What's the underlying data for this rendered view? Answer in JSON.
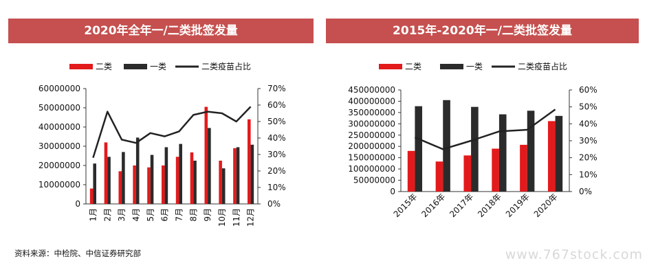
{
  "colors": {
    "title_bg": "#c5504f",
    "red": "#e31a1c",
    "black": "#2b2b2b",
    "line": "#222222"
  },
  "source_note": "资料来源：中检院、中信证券研究部",
  "watermark": "www.767stock.com",
  "chart_data": [
    {
      "type": "bar",
      "title": "2020年全年一/二类批签发量",
      "categories": [
        "1月",
        "2月",
        "3月",
        "4月",
        "5月",
        "6月",
        "7月",
        "8月",
        "9月",
        "10月",
        "11月",
        "12月"
      ],
      "series": [
        {
          "name": "二类",
          "kind": "bar",
          "axis": "left",
          "values": [
            8000000,
            32000000,
            17000000,
            20000000,
            19000000,
            20000000,
            24500000,
            26800000,
            50500000,
            22500000,
            29000000,
            44000000
          ]
        },
        {
          "name": "一类",
          "kind": "bar",
          "axis": "left",
          "values": [
            21000000,
            24500000,
            27000000,
            34500000,
            25500000,
            29500000,
            31200000,
            22500000,
            39500000,
            18500000,
            29500000,
            30800000
          ]
        },
        {
          "name": "二类疫苗占比",
          "kind": "line",
          "axis": "right",
          "values": [
            0.28,
            0.56,
            0.39,
            0.37,
            0.43,
            0.41,
            0.44,
            0.54,
            0.56,
            0.55,
            0.5,
            0.59
          ]
        }
      ],
      "ylim": [
        0,
        60000000
      ],
      "yticks": [
        "0",
        "10000000",
        "20000000",
        "30000000",
        "40000000",
        "50000000",
        "60000000"
      ],
      "y2lim": [
        0,
        0.7
      ],
      "y2ticks": [
        "0%",
        "10%",
        "20%",
        "30%",
        "40%",
        "50%",
        "60%",
        "70%"
      ],
      "legend": "top"
    },
    {
      "type": "bar",
      "title": "2015年-2020年一/二类批签发量",
      "categories": [
        "2015年",
        "2016年",
        "2017年",
        "2018年",
        "2019年",
        "2020年"
      ],
      "series": [
        {
          "name": "二类",
          "kind": "bar",
          "axis": "left",
          "values": [
            180000000,
            133000000,
            160000000,
            190000000,
            207000000,
            312000000
          ]
        },
        {
          "name": "一类",
          "kind": "bar",
          "axis": "left",
          "values": [
            378000000,
            405000000,
            375000000,
            342000000,
            358000000,
            335000000
          ]
        },
        {
          "name": "二类疫苗占比",
          "kind": "line",
          "axis": "right",
          "values": [
            0.32,
            0.25,
            0.3,
            0.355,
            0.365,
            0.485
          ]
        }
      ],
      "ylim": [
        0,
        450000000
      ],
      "yticks": [
        "0",
        "50000000",
        "100000000",
        "150000000",
        "200000000",
        "250000000",
        "300000000",
        "350000000",
        "400000000",
        "450000000"
      ],
      "y2lim": [
        0,
        0.6
      ],
      "y2ticks": [
        "0%",
        "10%",
        "20%",
        "30%",
        "40%",
        "50%",
        "60%"
      ],
      "legend": "top"
    }
  ]
}
